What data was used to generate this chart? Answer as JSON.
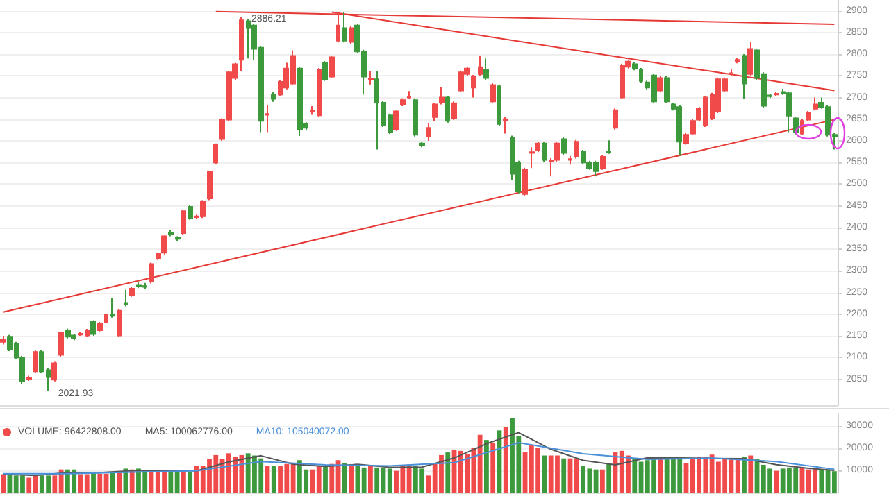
{
  "chart_data": [
    {
      "type": "candlestick",
      "tick_labels": "y",
      "grid": "y",
      "categories": [
        null,
        null,
        null,
        null,
        null,
        null,
        null,
        null,
        null,
        null,
        null,
        null,
        null,
        null,
        null,
        null,
        null,
        null,
        null,
        null,
        null,
        null,
        null,
        null,
        null,
        null,
        null,
        null,
        null,
        null,
        null,
        null,
        null,
        null,
        null,
        null,
        null,
        null,
        null,
        null,
        null,
        null,
        null,
        null,
        null,
        null,
        null,
        null,
        null,
        null,
        null,
        null,
        null,
        null,
        null,
        null,
        null,
        null,
        null,
        null,
        null,
        null,
        null,
        null,
        null,
        null,
        null,
        null,
        null,
        null,
        null,
        null,
        null,
        null,
        null,
        null,
        null,
        null,
        null,
        null,
        null,
        null,
        null,
        null,
        null,
        null,
        null,
        null,
        null,
        null,
        null,
        null,
        null,
        null,
        null,
        null,
        null,
        null,
        null,
        null,
        null,
        null,
        null,
        null,
        null,
        null,
        null,
        null,
        null,
        null,
        null,
        null,
        null,
        null,
        null,
        null,
        null,
        null,
        null,
        null,
        null,
        null,
        null,
        null,
        null,
        null,
        null,
        null,
        null,
        null
      ],
      "ohlc": [
        [
          2136,
          2150,
          2130,
          2141
        ],
        [
          2148,
          2152,
          2115,
          2119
        ],
        [
          2132,
          2136,
          2096,
          2100
        ],
        [
          2100,
          2104,
          2039,
          2045
        ],
        [
          2050,
          2058,
          2046,
          2053
        ],
        [
          2068,
          2116,
          2064,
          2113
        ],
        [
          2113,
          2117,
          2064,
          2068
        ],
        [
          2071,
          2075,
          2021.93,
          2055
        ],
        [
          2049,
          2090,
          2045,
          2087
        ],
        [
          2106,
          2160,
          2102,
          2157
        ],
        [
          2163,
          2167,
          2144,
          2148
        ],
        [
          2151,
          2154,
          2140,
          2144
        ],
        [
          2153,
          2158,
          2150,
          2155
        ],
        [
          2151,
          2166,
          2148,
          2163
        ],
        [
          2182,
          2186,
          2150,
          2154
        ],
        [
          2163,
          2182,
          2160,
          2179
        ],
        [
          2182,
          2201,
          2179,
          2198
        ],
        [
          2198,
          2237,
          2192,
          2196
        ],
        [
          2151,
          2211,
          2148,
          2208
        ],
        [
          2226,
          2256,
          2218,
          2222
        ],
        [
          2244,
          2262,
          2240,
          2259
        ],
        [
          2266,
          2275,
          2260,
          2264
        ],
        [
          2265,
          2272,
          2258,
          2263
        ],
        [
          2275,
          2319,
          2271,
          2316
        ],
        [
          2329,
          2342,
          2325,
          2339
        ],
        [
          2342,
          2383,
          2338,
          2380
        ],
        [
          2388,
          2394,
          2380,
          2385
        ],
        [
          2376,
          2380,
          2368,
          2374
        ],
        [
          2387,
          2441,
          2383,
          2438
        ],
        [
          2448,
          2452,
          2418,
          2422
        ],
        [
          2424,
          2430,
          2420,
          2426
        ],
        [
          2426,
          2463,
          2422,
          2460
        ],
        [
          2467,
          2531,
          2463,
          2528
        ],
        [
          2550,
          2594,
          2546,
          2591
        ],
        [
          2604,
          2652,
          2600,
          2649
        ],
        [
          2649,
          2761,
          2645,
          2758
        ],
        [
          2745,
          2780,
          2741,
          2777
        ],
        [
          2787,
          2886.21,
          2760,
          2878
        ],
        [
          2876,
          2880,
          2790,
          2860
        ],
        [
          2866,
          2870,
          2787,
          2812
        ],
        [
          2815,
          2819,
          2620,
          2646
        ],
        [
          2660,
          2683,
          2620,
          2662
        ],
        [
          2707,
          2712,
          2690,
          2697
        ],
        [
          2707,
          2740,
          2703,
          2736
        ],
        [
          2723,
          2780,
          2719,
          2767
        ],
        [
          2732,
          2809,
          2728,
          2796
        ],
        [
          2767,
          2771,
          2611,
          2627
        ],
        [
          2639,
          2643,
          2625,
          2630
        ],
        [
          2668,
          2680,
          2660,
          2670
        ],
        [
          2659,
          2768,
          2655,
          2764
        ],
        [
          2780,
          2784,
          2738,
          2742
        ],
        [
          2748,
          2797,
          2744,
          2793
        ],
        [
          2831,
          2895,
          2827,
          2866
        ],
        [
          2860,
          2897,
          2827,
          2831
        ],
        [
          2828,
          2864,
          2824,
          2860
        ],
        [
          2866,
          2870,
          2802,
          2806
        ],
        [
          2806,
          2810,
          2707,
          2748
        ],
        [
          2742,
          2760,
          2730,
          2744
        ],
        [
          2742,
          2760,
          2580,
          2688
        ],
        [
          2688,
          2692,
          2632,
          2636
        ],
        [
          2659,
          2663,
          2616,
          2620
        ],
        [
          2627,
          2672,
          2623,
          2668
        ],
        [
          2684,
          2698,
          2680,
          2694
        ],
        [
          2700,
          2715,
          2696,
          2702
        ],
        [
          2694,
          2698,
          2610,
          2614
        ],
        [
          2594,
          2598,
          2585,
          2590
        ],
        [
          2611,
          2640,
          2600,
          2630
        ],
        [
          2655,
          2688,
          2645,
          2684
        ],
        [
          2688,
          2725,
          2684,
          2700
        ],
        [
          2700,
          2704,
          2642,
          2646
        ],
        [
          2652,
          2691,
          2648,
          2687
        ],
        [
          2716,
          2762,
          2712,
          2758
        ],
        [
          2754,
          2771,
          2750,
          2767
        ],
        [
          2723,
          2752,
          2700,
          2748
        ],
        [
          2754,
          2796,
          2750,
          2770
        ],
        [
          2764,
          2790,
          2741,
          2745
        ],
        [
          2691,
          2733,
          2687,
          2729
        ],
        [
          2726,
          2730,
          2635,
          2639
        ],
        [
          2648,
          2655,
          2617,
          2650
        ],
        [
          2608,
          2612,
          2510,
          2524
        ],
        [
          2550,
          2554,
          2479,
          2483
        ],
        [
          2477,
          2538,
          2473,
          2534
        ],
        [
          2572,
          2585,
          2537,
          2574
        ],
        [
          2578,
          2598,
          2574,
          2594
        ],
        [
          2594,
          2598,
          2552,
          2556
        ],
        [
          2553,
          2560,
          2518,
          2555
        ],
        [
          2556,
          2598,
          2552,
          2594
        ],
        [
          2604,
          2608,
          2568,
          2572
        ],
        [
          2556,
          2565,
          2545,
          2558
        ],
        [
          2563,
          2602,
          2559,
          2598
        ],
        [
          2575,
          2579,
          2546,
          2550
        ],
        [
          2550,
          2554,
          2533,
          2537
        ],
        [
          2550,
          2554,
          2518,
          2530
        ],
        [
          2537,
          2567,
          2533,
          2563
        ],
        [
          2576,
          2601,
          2570,
          2574
        ],
        [
          2630,
          2675,
          2626,
          2671
        ],
        [
          2700,
          2778,
          2696,
          2774
        ],
        [
          2771,
          2787,
          2767,
          2783
        ],
        [
          2777,
          2781,
          2763,
          2767
        ],
        [
          2764,
          2768,
          2734,
          2738
        ],
        [
          2735,
          2739,
          2719,
          2723
        ],
        [
          2751,
          2755,
          2687,
          2691
        ],
        [
          2716,
          2749,
          2712,
          2745
        ],
        [
          2745,
          2749,
          2687,
          2691
        ],
        [
          2684,
          2688,
          2670,
          2674
        ],
        [
          2678,
          2682,
          2566,
          2598
        ],
        [
          2595,
          2618,
          2591,
          2614
        ],
        [
          2617,
          2650,
          2613,
          2646
        ],
        [
          2649,
          2678,
          2645,
          2674
        ],
        [
          2636,
          2704,
          2632,
          2700
        ],
        [
          2652,
          2711,
          2648,
          2707
        ],
        [
          2668,
          2746,
          2664,
          2742
        ],
        [
          2716,
          2746,
          2712,
          2742
        ],
        [
          2754,
          2765,
          2750,
          2756
        ],
        [
          2783,
          2791,
          2779,
          2787
        ],
        [
          2796,
          2800,
          2697,
          2732
        ],
        [
          2754,
          2828,
          2750,
          2812
        ],
        [
          2809,
          2813,
          2741,
          2745
        ],
        [
          2754,
          2758,
          2677,
          2681
        ],
        [
          2705,
          2709,
          2699,
          2703
        ],
        [
          2707,
          2713,
          2703,
          2709
        ],
        [
          2713,
          2720,
          2706,
          2710
        ],
        [
          2710,
          2714,
          2620,
          2658
        ],
        [
          2652,
          2656,
          2615,
          2620
        ],
        [
          2617,
          2650,
          2613,
          2646
        ],
        [
          2649,
          2669,
          2645,
          2665
        ],
        [
          2674,
          2700,
          2670,
          2684
        ],
        [
          2688,
          2700,
          2674,
          2678
        ],
        [
          2678,
          2682,
          2610,
          2614
        ],
        [
          2614,
          2618,
          2580,
          2611
        ]
      ],
      "colors": [
        "#f04a4a",
        "#3c9a3c",
        "#3c9a3c",
        "#3c9a3c",
        "#f04a4a",
        "#f04a4a",
        "#3c9a3c",
        "#3c9a3c",
        "#f04a4a",
        "#f04a4a",
        "#3c9a3c",
        "#3c9a3c",
        "#f04a4a",
        "#f04a4a",
        "#3c9a3c",
        "#f04a4a",
        "#f04a4a",
        "#3c9a3c",
        "#f04a4a",
        "#3c9a3c",
        "#f04a4a",
        "#3c9a3c",
        "#3c9a3c",
        "#f04a4a",
        "#f04a4a",
        "#f04a4a",
        "#3c9a3c",
        "#3c9a3c",
        "#f04a4a",
        "#3c9a3c",
        "#f04a4a",
        "#f04a4a",
        "#f04a4a",
        "#f04a4a",
        "#f04a4a",
        "#f04a4a",
        "#f04a4a",
        "#f04a4a",
        "#3c9a3c",
        "#3c9a3c",
        "#3c9a3c",
        "#f04a4a",
        "#3c9a3c",
        "#f04a4a",
        "#f04a4a",
        "#f04a4a",
        "#3c9a3c",
        "#3c9a3c",
        "#f04a4a",
        "#f04a4a",
        "#3c9a3c",
        "#f04a4a",
        "#f04a4a",
        "#3c9a3c",
        "#f04a4a",
        "#3c9a3c",
        "#3c9a3c",
        "#f04a4a",
        "#3c9a3c",
        "#3c9a3c",
        "#3c9a3c",
        "#f04a4a",
        "#f04a4a",
        "#f04a4a",
        "#3c9a3c",
        "#3c9a3c",
        "#f04a4a",
        "#f04a4a",
        "#f04a4a",
        "#3c9a3c",
        "#f04a4a",
        "#f04a4a",
        "#f04a4a",
        "#f04a4a",
        "#f04a4a",
        "#3c9a3c",
        "#f04a4a",
        "#3c9a3c",
        "#f04a4a",
        "#3c9a3c",
        "#3c9a3c",
        "#f04a4a",
        "#f04a4a",
        "#f04a4a",
        "#3c9a3c",
        "#f04a4a",
        "#f04a4a",
        "#3c9a3c",
        "#f04a4a",
        "#f04a4a",
        "#3c9a3c",
        "#3c9a3c",
        "#3c9a3c",
        "#f04a4a",
        "#3c9a3c",
        "#f04a4a",
        "#f04a4a",
        "#f04a4a",
        "#3c9a3c",
        "#3c9a3c",
        "#3c9a3c",
        "#3c9a3c",
        "#f04a4a",
        "#3c9a3c",
        "#3c9a3c",
        "#3c9a3c",
        "#f04a4a",
        "#f04a4a",
        "#f04a4a",
        "#f04a4a",
        "#f04a4a",
        "#f04a4a",
        "#f04a4a",
        "#f04a4a",
        "#f04a4a",
        "#3c9a3c",
        "#f04a4a",
        "#3c9a3c",
        "#3c9a3c",
        "#3c9a3c",
        "#f04a4a",
        "#3c9a3c",
        "#3c9a3c",
        "#3c9a3c",
        "#f04a4a",
        "#f04a4a",
        "#f04a4a",
        "#3c9a3c",
        "#3c9a3c",
        "#3c9a3c"
      ],
      "series": [
        {
          "type": "line",
          "color": "#e53935",
          "values": [
            null,
            null,
            null,
            null,
            null,
            null,
            null,
            null,
            null,
            null,
            null,
            null,
            null,
            null,
            null,
            null,
            null,
            null,
            null,
            null,
            null,
            null,
            null,
            null,
            null,
            null,
            null,
            null,
            null,
            null,
            null,
            null,
            null,
            2898,
            null,
            null,
            null,
            null,
            null,
            null,
            null,
            null,
            null,
            null,
            null,
            null,
            null,
            null,
            null,
            null,
            null,
            null,
            null,
            null,
            null,
            null,
            null,
            null,
            null,
            null,
            null,
            null,
            null,
            null,
            null,
            null,
            null,
            null,
            null,
            null,
            null,
            null,
            null,
            null,
            null,
            null,
            null,
            null,
            null,
            null,
            null,
            null,
            null,
            null,
            null,
            null,
            null,
            null,
            null,
            null,
            null,
            null,
            null,
            null,
            null,
            null,
            null,
            null,
            null,
            null,
            null,
            null,
            null,
            null,
            null,
            null,
            null,
            null,
            null,
            null,
            null,
            null,
            null,
            null,
            null,
            null,
            null,
            null,
            null,
            null,
            null,
            null,
            null,
            null,
            null,
            null,
            null,
            null,
            null,
            2869
          ]
        },
        {
          "type": "line",
          "color": "#e53935",
          "values": [
            null,
            null,
            null,
            null,
            null,
            null,
            null,
            null,
            null,
            null,
            null,
            null,
            null,
            null,
            null,
            null,
            null,
            null,
            null,
            null,
            null,
            null,
            null,
            null,
            null,
            null,
            null,
            null,
            null,
            null,
            null,
            null,
            null,
            null,
            null,
            null,
            null,
            null,
            null,
            null,
            null,
            null,
            null,
            null,
            null,
            null,
            null,
            null,
            null,
            null,
            null,
            2897,
            null,
            null,
            null,
            null,
            null,
            null,
            null,
            null,
            null,
            null,
            null,
            null,
            null,
            null,
            null,
            null,
            null,
            null,
            null,
            null,
            null,
            null,
            null,
            null,
            null,
            null,
            null,
            null,
            null,
            null,
            null,
            null,
            null,
            null,
            null,
            null,
            null,
            null,
            null,
            null,
            null,
            null,
            null,
            null,
            null,
            null,
            null,
            null,
            null,
            null,
            null,
            null,
            null,
            null,
            null,
            null,
            null,
            null,
            null,
            null,
            null,
            null,
            null,
            null,
            null,
            null,
            null,
            null,
            null,
            null,
            null,
            null,
            null,
            null,
            null,
            null,
            null,
            2716
          ]
        },
        {
          "type": "line",
          "color": "#e53935",
          "values": [
            2205,
            null,
            null,
            null,
            null,
            null,
            null,
            null,
            null,
            null,
            null,
            null,
            null,
            null,
            null,
            null,
            null,
            null,
            null,
            null,
            null,
            null,
            null,
            null,
            null,
            null,
            null,
            null,
            null,
            null,
            null,
            null,
            null,
            null,
            null,
            null,
            null,
            null,
            null,
            null,
            null,
            null,
            null,
            null,
            null,
            null,
            null,
            null,
            null,
            null,
            null,
            null,
            null,
            null,
            null,
            null,
            null,
            null,
            null,
            null,
            null,
            null,
            null,
            null,
            null,
            null,
            null,
            null,
            null,
            null,
            null,
            null,
            null,
            null,
            null,
            null,
            null,
            null,
            null,
            null,
            null,
            null,
            null,
            null,
            null,
            null,
            null,
            null,
            null,
            null,
            null,
            null,
            null,
            null,
            null,
            null,
            null,
            null,
            null,
            null,
            null,
            null,
            null,
            null,
            null,
            null,
            null,
            null,
            null,
            null,
            null,
            null,
            null,
            null,
            null,
            null,
            null,
            null,
            null,
            null,
            null,
            null,
            null,
            null,
            null,
            null,
            null,
            null,
            null,
            2649
          ]
        }
      ],
      "ylim": [
        1990,
        2925
      ],
      "yticks": [
        2050,
        2100,
        2150,
        2200,
        2250,
        2300,
        2350,
        2400,
        2450,
        2500,
        2550,
        2600,
        2650,
        2700,
        2750,
        2800,
        2850,
        2900
      ],
      "annotations": [
        {
          "text": "2886.21",
          "y": 2886.21
        },
        "2021.93"
      ]
    },
    {
      "type": "bar",
      "tick_labels": "y",
      "grid": "y",
      "legend": "top left",
      "categories": [
        null,
        null,
        null,
        null,
        null,
        null,
        null,
        null,
        null,
        null,
        null,
        null,
        null,
        null,
        null,
        null,
        null,
        null,
        null,
        null,
        null,
        null,
        null,
        null,
        null,
        null,
        null,
        null,
        null,
        null,
        null,
        null,
        null,
        null,
        null,
        null,
        null,
        null,
        null,
        null,
        null,
        null,
        null,
        null,
        null,
        null,
        null,
        null,
        null,
        null,
        null,
        null,
        null,
        null,
        null,
        null,
        null,
        null,
        null,
        null,
        null,
        null,
        null,
        null,
        null,
        null,
        null,
        null,
        null,
        null,
        null,
        null,
        null,
        null,
        null,
        null,
        null,
        null,
        null,
        null,
        null,
        null,
        null,
        null,
        null,
        null,
        null,
        null,
        null,
        null,
        null,
        null,
        null,
        null,
        null,
        null,
        null,
        null,
        null,
        null,
        null,
        null,
        null,
        null,
        null,
        null,
        null,
        null,
        null,
        null,
        null,
        null,
        null,
        null,
        null,
        null,
        null,
        null,
        null,
        null,
        null,
        null,
        null,
        null,
        null,
        null,
        null,
        null,
        null,
        null
      ],
      "series": [
        {
          "name": "VOLUME: 96422808.00",
          "type": "bar",
          "colors": [
            "#f04a4a",
            "#3c9a3c",
            "#3c9a3c",
            "#3c9a3c",
            "#f04a4a",
            "#f04a4a",
            "#3c9a3c",
            "#3c9a3c",
            "#f04a4a",
            "#f04a4a",
            "#3c9a3c",
            "#3c9a3c",
            "#f04a4a",
            "#f04a4a",
            "#3c9a3c",
            "#f04a4a",
            "#f04a4a",
            "#3c9a3c",
            "#f04a4a",
            "#3c9a3c",
            "#f04a4a",
            "#3c9a3c",
            "#3c9a3c",
            "#f04a4a",
            "#f04a4a",
            "#f04a4a",
            "#3c9a3c",
            "#3c9a3c",
            "#f04a4a",
            "#3c9a3c",
            "#f04a4a",
            "#f04a4a",
            "#f04a4a",
            "#f04a4a",
            "#f04a4a",
            "#f04a4a",
            "#f04a4a",
            "#f04a4a",
            "#3c9a3c",
            "#3c9a3c",
            "#3c9a3c",
            "#f04a4a",
            "#3c9a3c",
            "#f04a4a",
            "#f04a4a",
            "#f04a4a",
            "#3c9a3c",
            "#3c9a3c",
            "#f04a4a",
            "#f04a4a",
            "#3c9a3c",
            "#f04a4a",
            "#f04a4a",
            "#3c9a3c",
            "#f04a4a",
            "#3c9a3c",
            "#3c9a3c",
            "#f04a4a",
            "#3c9a3c",
            "#3c9a3c",
            "#3c9a3c",
            "#f04a4a",
            "#f04a4a",
            "#f04a4a",
            "#3c9a3c",
            "#3c9a3c",
            "#f04a4a",
            "#f04a4a",
            "#f04a4a",
            "#3c9a3c",
            "#f04a4a",
            "#f04a4a",
            "#f04a4a",
            "#f04a4a",
            "#f04a4a",
            "#3c9a3c",
            "#f04a4a",
            "#3c9a3c",
            "#f04a4a",
            "#3c9a3c",
            "#3c9a3c",
            "#f04a4a",
            "#f04a4a",
            "#f04a4a",
            "#3c9a3c",
            "#f04a4a",
            "#f04a4a",
            "#3c9a3c",
            "#f04a4a",
            "#f04a4a",
            "#3c9a3c",
            "#3c9a3c",
            "#3c9a3c",
            "#f04a4a",
            "#3c9a3c",
            "#f04a4a",
            "#f04a4a",
            "#f04a4a",
            "#3c9a3c",
            "#3c9a3c",
            "#3c9a3c",
            "#3c9a3c",
            "#f04a4a",
            "#3c9a3c",
            "#3c9a3c",
            "#3c9a3c",
            "#f04a4a",
            "#f04a4a",
            "#f04a4a",
            "#f04a4a",
            "#f04a4a",
            "#f04a4a",
            "#f04a4a",
            "#f04a4a",
            "#f04a4a",
            "#3c9a3c",
            "#f04a4a",
            "#3c9a3c",
            "#3c9a3c",
            "#3c9a3c",
            "#f04a4a",
            "#3c9a3c",
            "#3c9a3c",
            "#3c9a3c",
            "#f04a4a",
            "#f04a4a",
            "#f04a4a",
            "#3c9a3c",
            "#3c9a3c",
            "#3c9a3c"
          ],
          "values": [
            8300,
            8500,
            7700,
            7700,
            6700,
            7700,
            7700,
            7700,
            7700,
            10400,
            10400,
            10400,
            8300,
            8300,
            8800,
            8500,
            8500,
            8800,
            9300,
            10800,
            10400,
            10800,
            9800,
            9800,
            9800,
            9800,
            9300,
            9300,
            9300,
            9300,
            11900,
            11900,
            15100,
            16900,
            15100,
            17700,
            16100,
            16900,
            17700,
            16700,
            15400,
            11900,
            11900,
            11900,
            12900,
            13300,
            14600,
            10400,
            10400,
            11900,
            11900,
            12900,
            14600,
            13300,
            12400,
            11900,
            11300,
            11900,
            11300,
            11300,
            10800,
            9800,
            11900,
            11900,
            11900,
            10800,
            7700,
            13300,
            16900,
            18100,
            19300,
            18800,
            17500,
            20000,
            26000,
            23700,
            22500,
            28000,
            29400,
            33700,
            25600,
            18100,
            21200,
            20200,
            16700,
            16700,
            16700,
            15400,
            15400,
            15400,
            11900,
            10800,
            10400,
            10400,
            12900,
            18100,
            18800,
            16700,
            15000,
            13900,
            14600,
            16000,
            16000,
            15400,
            15400,
            15000,
            13300,
            15400,
            16000,
            16000,
            17100,
            13900,
            15000,
            15400,
            15400,
            16000,
            16700,
            15000,
            12500,
            10800,
            9800,
            10800,
            11300,
            11300,
            11300,
            10400,
            10800,
            10400,
            10400,
            9600
          ]
        },
        {
          "name": "MA5: 100062776.00",
          "type": "line",
          "color": "#555555",
          "values": [
            8300,
            null,
            null,
            null,
            null,
            7700,
            null,
            null,
            null,
            null,
            9000,
            null,
            null,
            null,
            null,
            9000,
            null,
            null,
            null,
            null,
            9800,
            null,
            null,
            null,
            null,
            10000,
            null,
            null,
            null,
            null,
            9800,
            null,
            null,
            null,
            null,
            13800,
            null,
            null,
            null,
            null,
            16600,
            null,
            null,
            null,
            null,
            12800,
            null,
            null,
            null,
            null,
            11800,
            null,
            null,
            null,
            null,
            12700,
            null,
            null,
            null,
            null,
            11400,
            null,
            null,
            null,
            null,
            11500,
            null,
            null,
            null,
            null,
            15600,
            null,
            null,
            null,
            null,
            22000,
            null,
            null,
            null,
            null,
            27000,
            null,
            null,
            null,
            null,
            19500,
            null,
            null,
            null,
            null,
            14500,
            null,
            null,
            null,
            null,
            12500,
            null,
            null,
            null,
            null,
            15700,
            null,
            null,
            null,
            null,
            15600,
            null,
            null,
            null,
            null,
            15400,
            null,
            null,
            null,
            null,
            15300,
            null,
            null,
            null,
            null,
            12600,
            null,
            null,
            null,
            null,
            10900,
            null,
            null,
            null,
            10000
          ]
        },
        {
          "name": "MA10: 105040072.00",
          "type": "line",
          "color": "#4a90d9",
          "values": [
            8500,
            null,
            null,
            null,
            null,
            null,
            null,
            null,
            null,
            null,
            8500,
            null,
            null,
            null,
            null,
            null,
            null,
            null,
            null,
            null,
            9200,
            null,
            null,
            null,
            null,
            null,
            null,
            null,
            null,
            null,
            9800,
            null,
            null,
            null,
            null,
            null,
            null,
            null,
            null,
            null,
            14000,
            null,
            null,
            null,
            null,
            null,
            null,
            null,
            null,
            null,
            12500,
            null,
            null,
            null,
            null,
            null,
            null,
            null,
            null,
            null,
            12000,
            null,
            null,
            null,
            null,
            null,
            null,
            null,
            null,
            null,
            13500,
            null,
            null,
            null,
            null,
            null,
            null,
            null,
            null,
            null,
            22500,
            null,
            null,
            null,
            null,
            null,
            null,
            null,
            null,
            null,
            17500,
            null,
            null,
            null,
            null,
            null,
            null,
            null,
            null,
            null,
            15000,
            null,
            null,
            null,
            null,
            null,
            null,
            null,
            null,
            null,
            15500,
            null,
            null,
            null,
            null,
            null,
            null,
            null,
            null,
            null,
            14000,
            null,
            null,
            null,
            null,
            null,
            null,
            null,
            null,
            10500
          ]
        }
      ],
      "ylim": [
        0,
        35600
      ],
      "yticks": [
        10000,
        20000,
        30000
      ]
    }
  ]
}
